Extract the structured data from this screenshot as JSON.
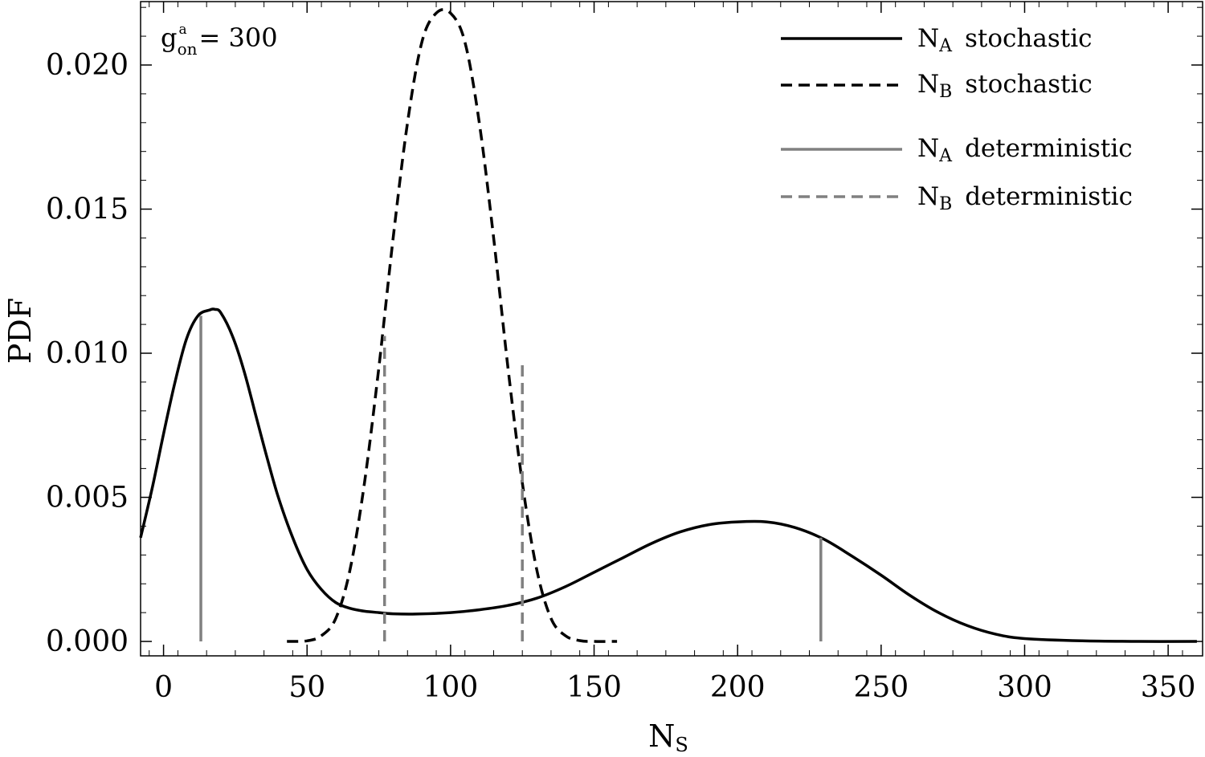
{
  "chart_data": {
    "type": "line",
    "title": "",
    "xlabel": "N",
    "xlabel_sub": "S",
    "ylabel": "PDF",
    "xlim": [
      -8,
      362
    ],
    "ylim": [
      -0.0005,
      0.0222
    ],
    "xticks": [
      0,
      50,
      100,
      150,
      200,
      250,
      300,
      350
    ],
    "xtick_labels": [
      "0",
      "50",
      "100",
      "150",
      "200",
      "250",
      "300",
      "350"
    ],
    "yticks": [
      0,
      0.005,
      0.01,
      0.015,
      0.02
    ],
    "ytick_labels": [
      "0.000",
      "0.005",
      "0.010",
      "0.015",
      "0.020"
    ],
    "grid": false,
    "legend_position": "top-right",
    "annotation": {
      "g": "g",
      "sup": "a",
      "sub": "on",
      "rest": "= 300"
    },
    "series": [
      {
        "name": "N_A stochastic",
        "legend_main": "N",
        "legend_sub": "A",
        "legend_desc": "stochastic",
        "color": "#000000",
        "dash": "solid",
        "x": [
          -8,
          -4,
          0,
          4,
          8,
          12,
          16,
          18,
          20,
          24,
          28,
          32,
          36,
          40,
          45,
          50,
          55,
          60,
          65,
          70,
          75,
          80,
          88,
          100,
          110,
          120,
          130,
          140,
          150,
          160,
          170,
          180,
          190,
          200,
          210,
          220,
          230,
          240,
          250,
          260,
          270,
          280,
          290,
          300,
          320,
          340,
          360
        ],
        "y": [
          0.0036,
          0.0053,
          0.0072,
          0.009,
          0.0105,
          0.0113,
          0.0115,
          0.01152,
          0.0114,
          0.0106,
          0.0094,
          0.0079,
          0.0064,
          0.005,
          0.0036,
          0.0025,
          0.0018,
          0.00135,
          0.00115,
          0.00105,
          0.001,
          0.00096,
          0.00095,
          0.001,
          0.0011,
          0.00125,
          0.0015,
          0.0019,
          0.0024,
          0.0029,
          0.0034,
          0.0038,
          0.00405,
          0.00415,
          0.00415,
          0.00395,
          0.00355,
          0.00295,
          0.0023,
          0.0016,
          0.001,
          0.00055,
          0.00025,
          0.0001,
          2e-05,
          0.0,
          0.0
        ]
      },
      {
        "name": "N_B stochastic",
        "legend_main": "N",
        "legend_sub": "B",
        "legend_desc": "stochastic",
        "color": "#000000",
        "dash": "dashed",
        "x": [
          43,
          50,
          55,
          60,
          65,
          70,
          75,
          80,
          85,
          90,
          95,
          100,
          105,
          110,
          115,
          120,
          125,
          130,
          135,
          140,
          145,
          150,
          158
        ],
        "y": [
          0.0,
          2e-05,
          0.0002,
          0.0008,
          0.0025,
          0.0055,
          0.0095,
          0.014,
          0.018,
          0.0208,
          0.0218,
          0.0218,
          0.0208,
          0.018,
          0.014,
          0.0095,
          0.0055,
          0.0025,
          0.0008,
          0.0002,
          3e-05,
          0.0,
          0.0
        ]
      },
      {
        "name": "N_A deterministic",
        "legend_main": "N",
        "legend_sub": "A",
        "legend_desc": "deterministic",
        "color": "#808080",
        "dash": "solid",
        "type": "vlines",
        "x": [
          13,
          229
        ],
        "y_top": [
          0.0113,
          0.0036
        ]
      },
      {
        "name": "N_B deterministic",
        "legend_main": "N",
        "legend_sub": "B",
        "legend_desc": "deterministic",
        "color": "#808080",
        "dash": "dashed",
        "type": "vlines",
        "x": [
          77,
          125
        ],
        "y_top": [
          0.0106,
          0.0097
        ]
      }
    ]
  }
}
